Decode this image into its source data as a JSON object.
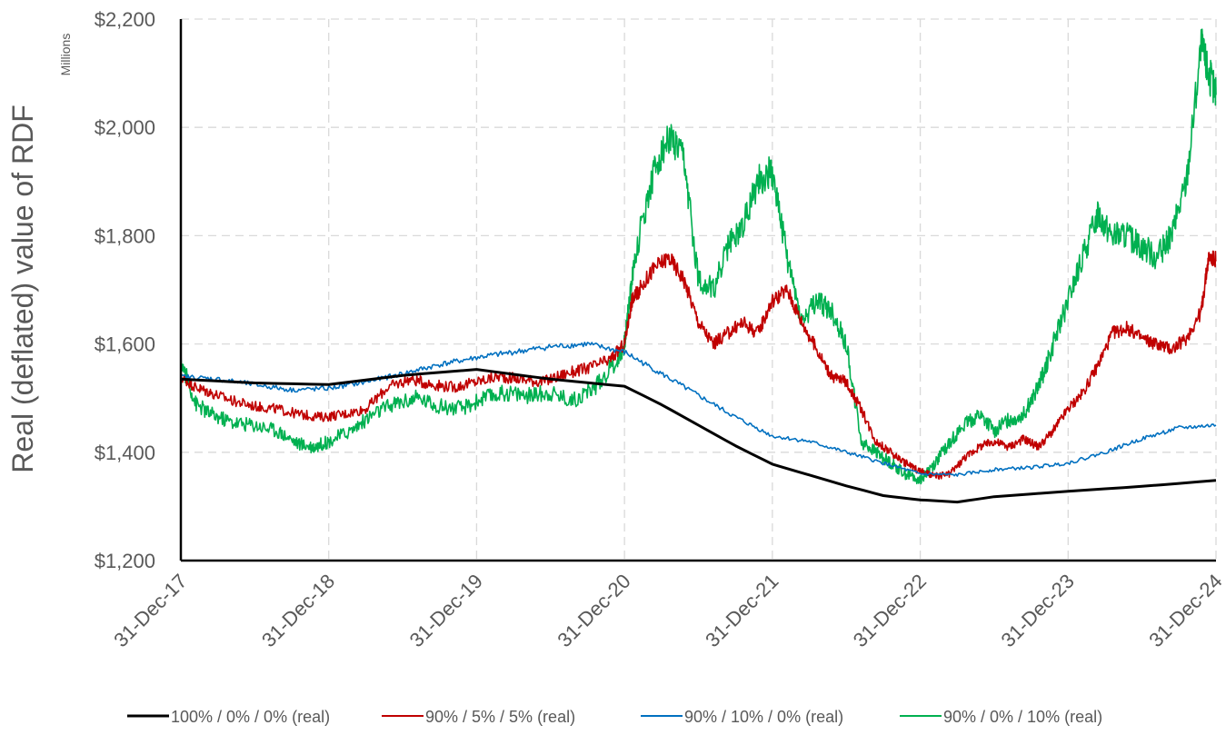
{
  "chart_data": {
    "type": "line",
    "title": "",
    "ylabel": "Real (deflated) value of RDF",
    "y_units": "Millions",
    "xlabel": "",
    "ylim": [
      1200,
      2200
    ],
    "y_ticks": [
      1200,
      1400,
      1600,
      1800,
      2000,
      2200
    ],
    "y_tick_labels": [
      "$1,200",
      "$1,400",
      "$1,600",
      "$1,800",
      "$2,000",
      "$2,200"
    ],
    "x_ticks": [
      "31-Dec-17",
      "31-Dec-18",
      "31-Dec-19",
      "31-Dec-20",
      "31-Dec-21",
      "31-Dec-22",
      "31-Dec-23",
      "31-Dec-24"
    ],
    "x_unit": "years since 31-Dec-17",
    "grid": true,
    "legend_position": "bottom",
    "series": [
      {
        "name": "100% / 0% / 0% (real)",
        "color": "#000000",
        "x": [
          0,
          0.5,
          1.0,
          1.5,
          2.0,
          2.5,
          3.0,
          3.25,
          3.5,
          3.75,
          4.0,
          4.25,
          4.5,
          4.75,
          5.0,
          5.25,
          5.5,
          6.0,
          6.5,
          7.0
        ],
        "y": [
          1535,
          1528,
          1525,
          1542,
          1553,
          1535,
          1522,
          1488,
          1450,
          1412,
          1378,
          1358,
          1338,
          1320,
          1312,
          1308,
          1318,
          1328,
          1337,
          1348
        ]
      },
      {
        "name": "90% / 5% / 5% (real)",
        "color": "#c00000",
        "x": [
          0,
          0.1,
          0.2,
          0.35,
          0.5,
          0.65,
          0.8,
          0.95,
          1.1,
          1.25,
          1.4,
          1.55,
          1.7,
          1.85,
          2.0,
          2.15,
          2.3,
          2.45,
          2.6,
          2.75,
          2.9,
          3.0,
          3.05,
          3.1,
          3.2,
          3.3,
          3.4,
          3.5,
          3.6,
          3.7,
          3.8,
          3.9,
          4.0,
          4.1,
          4.2,
          4.3,
          4.4,
          4.5,
          4.6,
          4.7,
          4.8,
          4.9,
          5.0,
          5.1,
          5.2,
          5.3,
          5.4,
          5.5,
          5.6,
          5.7,
          5.8,
          5.9,
          6.0,
          6.1,
          6.2,
          6.3,
          6.4,
          6.5,
          6.6,
          6.7,
          6.8,
          6.9,
          6.95,
          7.0
        ],
        "y": [
          1540,
          1520,
          1510,
          1495,
          1485,
          1480,
          1470,
          1465,
          1470,
          1480,
          1520,
          1535,
          1525,
          1520,
          1530,
          1540,
          1535,
          1530,
          1545,
          1555,
          1570,
          1600,
          1680,
          1700,
          1740,
          1760,
          1720,
          1640,
          1600,
          1620,
          1640,
          1620,
          1680,
          1700,
          1640,
          1590,
          1540,
          1530,
          1480,
          1420,
          1400,
          1380,
          1365,
          1355,
          1360,
          1390,
          1410,
          1420,
          1410,
          1425,
          1410,
          1440,
          1480,
          1510,
          1560,
          1620,
          1630,
          1610,
          1600,
          1590,
          1610,
          1660,
          1760,
          1755
        ]
      },
      {
        "name": "90% / 10% / 0% (real)",
        "color": "#0070c0",
        "x": [
          0,
          0.25,
          0.5,
          0.75,
          1.0,
          1.25,
          1.5,
          1.75,
          2.0,
          2.25,
          2.5,
          2.75,
          3.0,
          3.25,
          3.5,
          3.75,
          4.0,
          4.25,
          4.5,
          4.75,
          5.0,
          5.25,
          5.5,
          5.75,
          6.0,
          6.25,
          6.5,
          6.75,
          7.0
        ],
        "y": [
          1540,
          1535,
          1525,
          1515,
          1518,
          1530,
          1545,
          1562,
          1575,
          1585,
          1595,
          1600,
          1585,
          1545,
          1505,
          1465,
          1430,
          1420,
          1400,
          1380,
          1360,
          1358,
          1368,
          1372,
          1380,
          1400,
          1425,
          1445,
          1450
        ]
      },
      {
        "name": "90% / 0% / 10% (real)",
        "color": "#00b050",
        "x": [
          0,
          0.1,
          0.2,
          0.35,
          0.5,
          0.65,
          0.8,
          0.9,
          1.0,
          1.15,
          1.3,
          1.45,
          1.6,
          1.75,
          1.9,
          2.05,
          2.2,
          2.35,
          2.5,
          2.65,
          2.8,
          2.95,
          3.0,
          3.05,
          3.1,
          3.2,
          3.3,
          3.4,
          3.5,
          3.6,
          3.7,
          3.8,
          3.9,
          4.0,
          4.1,
          4.2,
          4.3,
          4.4,
          4.5,
          4.6,
          4.7,
          4.8,
          4.9,
          5.0,
          5.1,
          5.2,
          5.3,
          5.4,
          5.5,
          5.6,
          5.7,
          5.8,
          5.9,
          6.0,
          6.1,
          6.2,
          6.3,
          6.4,
          6.5,
          6.6,
          6.7,
          6.8,
          6.9,
          6.95,
          7.0
        ],
        "y": [
          1570,
          1490,
          1470,
          1455,
          1450,
          1440,
          1415,
          1410,
          1420,
          1440,
          1470,
          1490,
          1500,
          1485,
          1480,
          1500,
          1510,
          1505,
          1510,
          1495,
          1520,
          1570,
          1600,
          1720,
          1800,
          1920,
          1980,
          1940,
          1720,
          1700,
          1780,
          1820,
          1900,
          1920,
          1760,
          1640,
          1680,
          1660,
          1600,
          1420,
          1400,
          1380,
          1360,
          1350,
          1380,
          1420,
          1450,
          1470,
          1440,
          1460,
          1470,
          1520,
          1600,
          1680,
          1760,
          1840,
          1800,
          1800,
          1780,
          1760,
          1800,
          1900,
          2150,
          2100,
          2060
        ]
      }
    ]
  }
}
